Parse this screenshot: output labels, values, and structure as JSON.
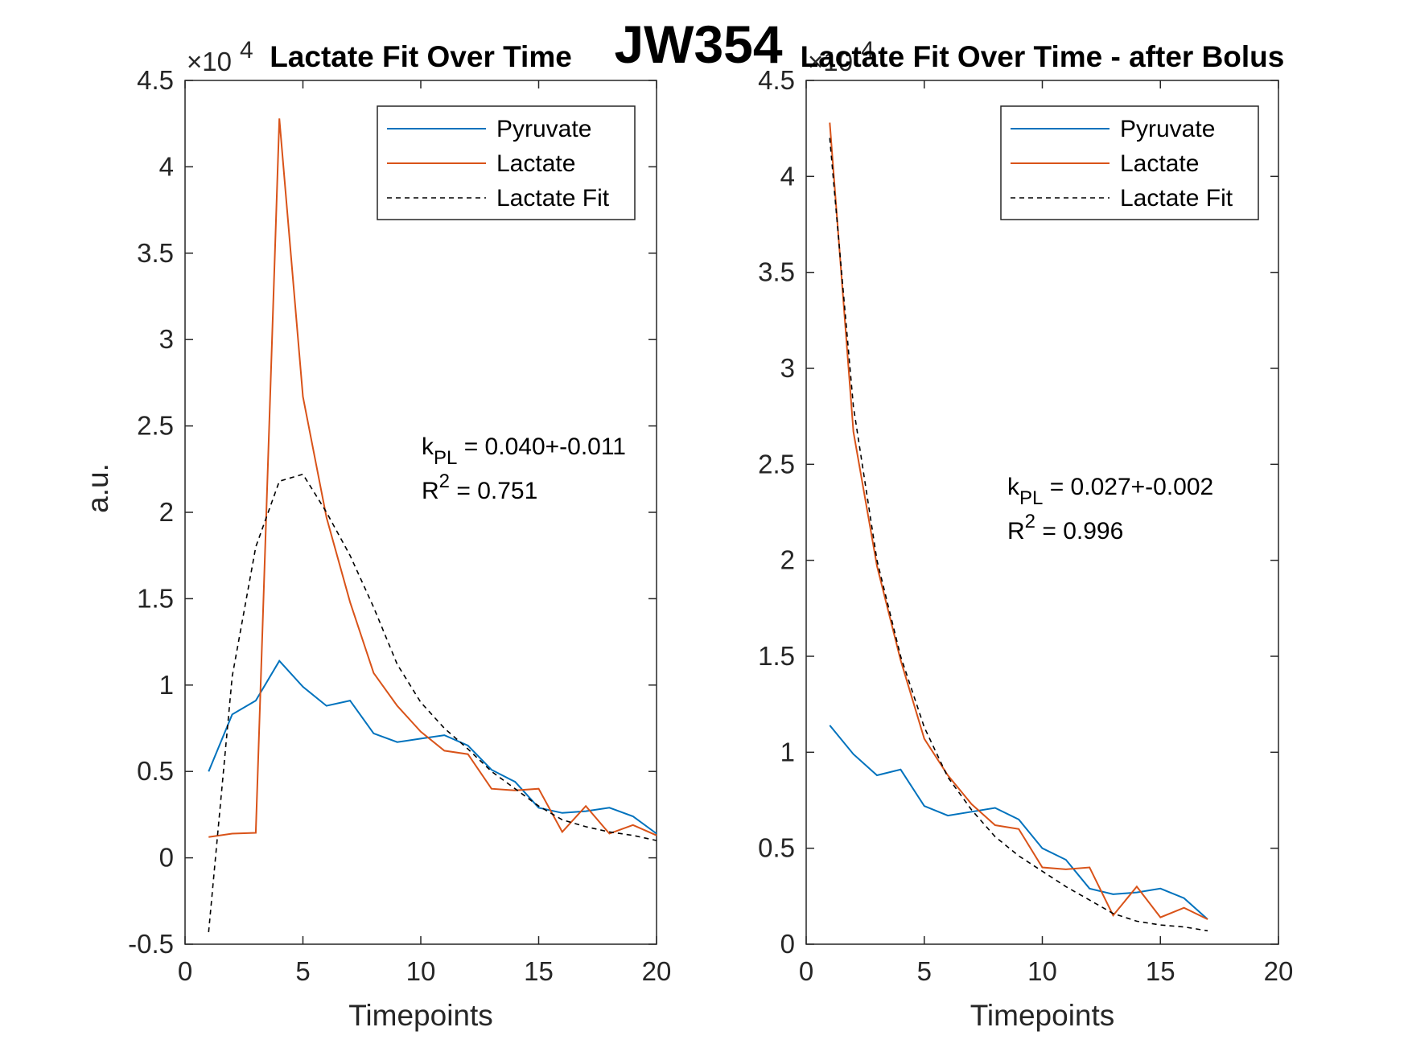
{
  "figure": {
    "suptitle": "JW354"
  },
  "colors": {
    "pyruvate": "#0072BD",
    "lactate": "#D95319",
    "fit": "#000000",
    "axis": "#262626"
  },
  "chart_data": [
    {
      "type": "line",
      "title": "Lactate Fit Over Time",
      "xlabel": "Timepoints",
      "ylabel": "a.u.",
      "exponent_label": "×10",
      "exponent_power": "4",
      "xlim": [
        0,
        20
      ],
      "ylim": [
        -0.5,
        4.5
      ],
      "y_scale_multiplier": 10000,
      "xticks": [
        "0",
        "5",
        "10",
        "15",
        "20"
      ],
      "yticks": [
        "-0.5",
        "0",
        "0.5",
        "1",
        "1.5",
        "2",
        "2.5",
        "3",
        "3.5",
        "4",
        "4.5"
      ],
      "grid": false,
      "legend_position": "top-right",
      "series": [
        {
          "name": "Pyruvate",
          "style": "solid",
          "color": "#0072BD",
          "x": [
            1,
            2,
            3,
            4,
            5,
            6,
            7,
            8,
            9,
            10,
            11,
            12,
            13,
            14,
            15,
            16,
            17,
            18,
            19,
            20
          ],
          "y": [
            0.5,
            0.83,
            0.91,
            1.14,
            0.99,
            0.88,
            0.91,
            0.72,
            0.67,
            0.69,
            0.71,
            0.65,
            0.51,
            0.44,
            0.29,
            0.26,
            0.27,
            0.29,
            0.24,
            0.14
          ]
        },
        {
          "name": "Lactate",
          "style": "solid",
          "color": "#D95319",
          "x": [
            1,
            2,
            3,
            4,
            5,
            6,
            7,
            8,
            9,
            10,
            11,
            12,
            13,
            14,
            15,
            16,
            17,
            18,
            19,
            20
          ],
          "y": [
            0.12,
            0.14,
            0.145,
            4.28,
            2.67,
            1.97,
            1.48,
            1.07,
            0.88,
            0.73,
            0.62,
            0.6,
            0.4,
            0.39,
            0.4,
            0.15,
            0.3,
            0.14,
            0.19,
            0.13
          ]
        },
        {
          "name": "Lactate Fit",
          "style": "dashed",
          "color": "#000000",
          "x": [
            1,
            2,
            3,
            4,
            5,
            6,
            7,
            8,
            9,
            10,
            11,
            12,
            13,
            14,
            15,
            16,
            17,
            18,
            19,
            20
          ],
          "y": [
            -0.43,
            1.05,
            1.8,
            2.18,
            2.22,
            2.0,
            1.75,
            1.45,
            1.12,
            0.9,
            0.75,
            0.63,
            0.5,
            0.4,
            0.3,
            0.22,
            0.18,
            0.15,
            0.13,
            0.1
          ]
        }
      ],
      "annotation": {
        "k_label": "k",
        "k_sub": "PL",
        "k_value": " = 0.040+-0.011",
        "r_label": "R",
        "r_sup": "2",
        "r_value": " = 0.751"
      }
    },
    {
      "type": "line",
      "title": "Lactate Fit Over Time - after Bolus",
      "xlabel": "Timepoints",
      "ylabel": "",
      "exponent_label": "×10",
      "exponent_power": "4",
      "xlim": [
        0,
        20
      ],
      "ylim": [
        0,
        4.5
      ],
      "y_scale_multiplier": 10000,
      "xticks": [
        "0",
        "5",
        "10",
        "15",
        "20"
      ],
      "yticks": [
        "0",
        "0.5",
        "1",
        "1.5",
        "2",
        "2.5",
        "3",
        "3.5",
        "4",
        "4.5"
      ],
      "grid": false,
      "legend_position": "top-right",
      "series": [
        {
          "name": "Pyruvate",
          "style": "solid",
          "color": "#0072BD",
          "x": [
            1,
            2,
            3,
            4,
            5,
            6,
            7,
            8,
            9,
            10,
            11,
            12,
            13,
            14,
            15,
            16,
            17
          ],
          "y": [
            1.14,
            0.99,
            0.88,
            0.91,
            0.72,
            0.67,
            0.69,
            0.71,
            0.65,
            0.5,
            0.44,
            0.29,
            0.26,
            0.27,
            0.29,
            0.24,
            0.13
          ]
        },
        {
          "name": "Lactate",
          "style": "solid",
          "color": "#D95319",
          "x": [
            1,
            2,
            3,
            4,
            5,
            6,
            7,
            8,
            9,
            10,
            11,
            12,
            13,
            14,
            15,
            16,
            17
          ],
          "y": [
            4.28,
            2.67,
            1.97,
            1.48,
            1.07,
            0.88,
            0.73,
            0.62,
            0.6,
            0.4,
            0.39,
            0.4,
            0.15,
            0.3,
            0.14,
            0.19,
            0.13
          ]
        },
        {
          "name": "Lactate Fit",
          "style": "dashed",
          "color": "#000000",
          "x": [
            1,
            2,
            3,
            4,
            5,
            6,
            7,
            8,
            9,
            10,
            11,
            12,
            13,
            14,
            15,
            16,
            17
          ],
          "y": [
            4.2,
            2.8,
            2.0,
            1.5,
            1.13,
            0.87,
            0.7,
            0.56,
            0.46,
            0.38,
            0.3,
            0.23,
            0.16,
            0.12,
            0.1,
            0.09,
            0.07
          ]
        }
      ],
      "annotation": {
        "k_label": "k",
        "k_sub": "PL",
        "k_value": " = 0.027+-0.002",
        "r_label": "R",
        "r_sup": "2",
        "r_value": " = 0.996"
      }
    }
  ]
}
